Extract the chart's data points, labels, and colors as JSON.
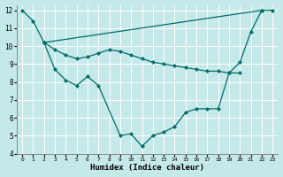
{
  "xlabel": "Humidex (Indice chaleur)",
  "bg_color": "#c5e8e8",
  "grid_color": "#ffffff",
  "line_color": "#006b6b",
  "xlim": [
    -0.5,
    23.5
  ],
  "ylim": [
    4,
    12.3
  ],
  "xticks": [
    0,
    1,
    2,
    3,
    4,
    5,
    6,
    7,
    8,
    9,
    10,
    11,
    12,
    13,
    14,
    15,
    16,
    17,
    18,
    19,
    20,
    21,
    22,
    23
  ],
  "yticks": [
    4,
    5,
    6,
    7,
    8,
    9,
    10,
    11,
    12
  ],
  "line1_x": [
    0,
    1,
    2,
    22,
    23
  ],
  "line1_y": [
    12.0,
    11.4,
    10.2,
    12.0,
    12.0
  ],
  "line2_x": [
    2,
    3,
    4,
    5,
    6,
    7,
    9,
    10,
    11,
    12,
    13,
    14,
    15,
    16,
    17,
    18,
    19,
    20,
    21,
    22
  ],
  "line2_y": [
    10.2,
    8.7,
    8.1,
    7.8,
    8.3,
    7.8,
    5.0,
    5.1,
    4.4,
    5.0,
    5.2,
    5.5,
    6.3,
    6.5,
    6.5,
    6.5,
    8.5,
    9.1,
    10.8,
    12.0
  ],
  "line3_x": [
    2,
    3,
    4,
    5,
    6,
    7,
    8,
    9,
    10,
    11,
    12,
    13,
    14,
    15,
    16,
    17,
    18,
    19,
    20
  ],
  "line3_y": [
    10.2,
    9.8,
    9.5,
    9.3,
    9.4,
    9.6,
    9.8,
    9.7,
    9.5,
    9.3,
    9.1,
    9.0,
    8.9,
    8.8,
    8.7,
    8.6,
    8.6,
    8.5,
    8.5
  ]
}
